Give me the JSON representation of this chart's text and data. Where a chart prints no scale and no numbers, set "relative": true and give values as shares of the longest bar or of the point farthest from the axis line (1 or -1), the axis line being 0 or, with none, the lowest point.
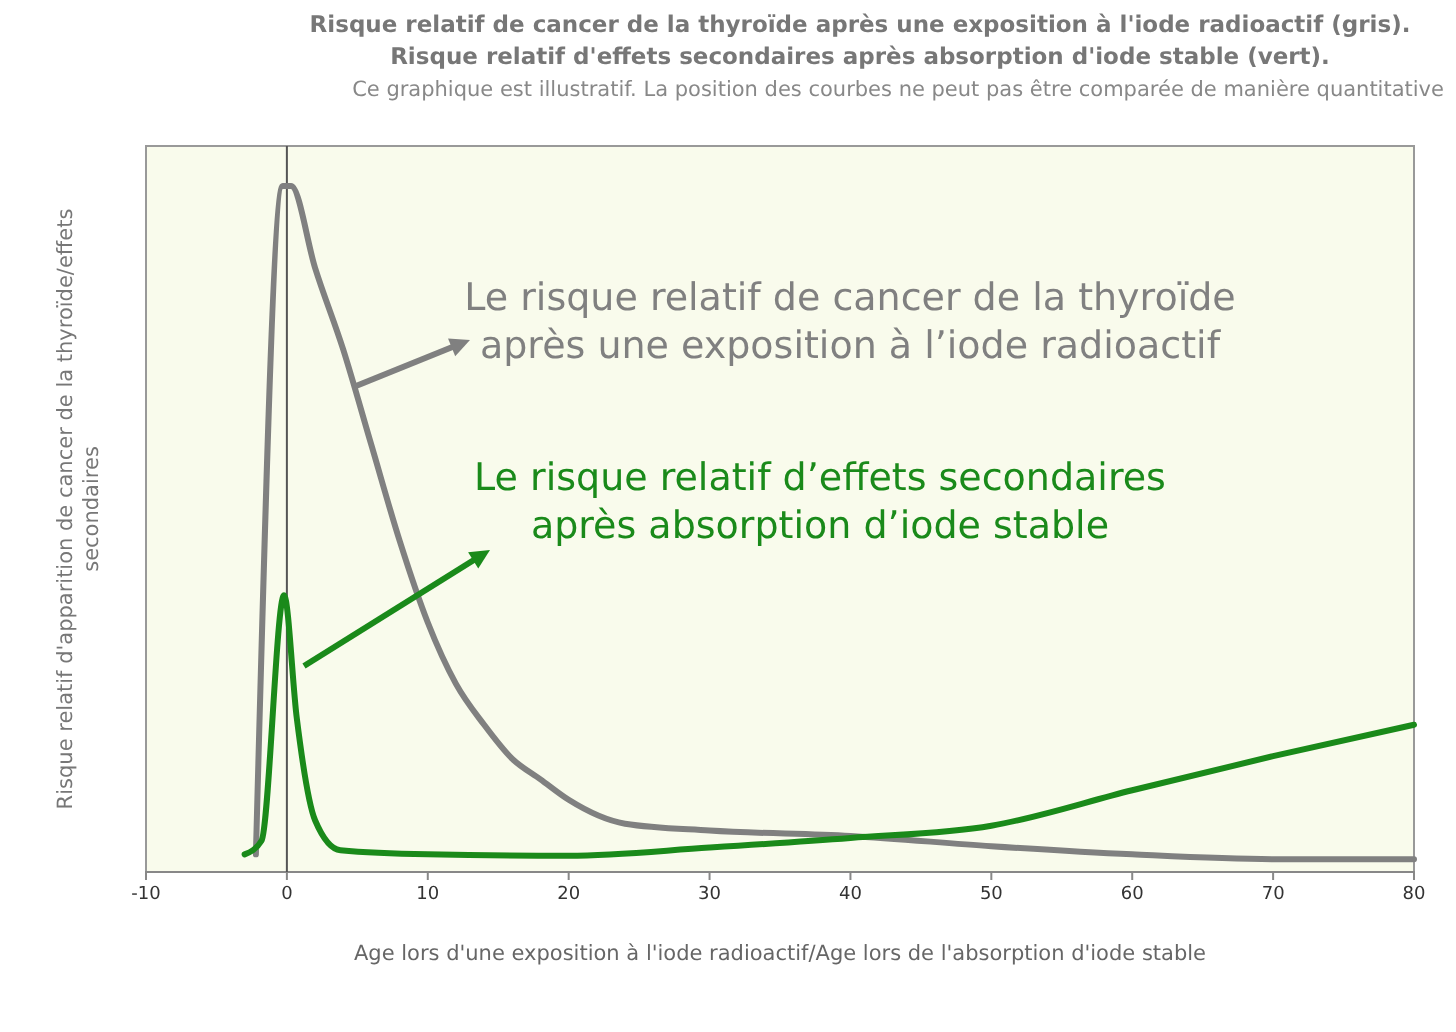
{
  "chart_data": {
    "type": "line",
    "relative": true,
    "title": "Risque relatif de cancer de la thyroïde après une exposition à l'iode radioactif (gris).\nRisque relatif d'effets secondaires après absorption d'iode stable (vert).",
    "subtitle": "Ce graphique est illustratif. La position des courbes ne peut pas être comparée de manière quantitative",
    "xlabel": "Age lors d'une exposition à l'iode radioactif/Age lors de l'absorption d'iode stable",
    "ylabel": "Risque relatif d'apparition de cancer de la thyroïde/effets\nsecondaires",
    "xlim": [
      -10,
      80
    ],
    "xticks": [
      -10,
      0,
      10,
      20,
      30,
      40,
      50,
      60,
      70,
      80
    ],
    "grid": false,
    "marker": "none",
    "line_style": "solid",
    "ref_lines": [
      {
        "axis": "x",
        "value": 0,
        "label": null,
        "color": "#555555"
      }
    ],
    "annotations": [
      "Le risque relatif de cancer de la thyroïde\naprès une exposition à l’iode radioactif",
      "Le risque relatif d’effets secondaires\naprès absorption d’iode stable"
    ],
    "series": [
      {
        "color": "#808080",
        "x": [
          -2.2,
          -0.3,
          0.3,
          2,
          4,
          6,
          8,
          10,
          12,
          14,
          16,
          18,
          20,
          24,
          30,
          40,
          50,
          60,
          70,
          80
        ],
        "values": [
          0.02,
          1,
          1,
          0.88,
          0.76,
          0.62,
          0.48,
          0.36,
          0.27,
          0.21,
          0.16,
          0.13,
          0.1,
          0.065,
          0.055,
          0.047,
          0.032,
          0.02,
          0.013,
          0.013
        ]
      },
      {
        "color": "#1a8a1a",
        "x": [
          -3,
          -1.8,
          -0.2,
          0.7,
          2,
          3.8,
          10,
          20,
          30,
          40,
          50,
          60,
          70,
          80
        ],
        "values": [
          0.02,
          0.04,
          0.4,
          0.22,
          0.07,
          0.026,
          0.02,
          0.018,
          0.03,
          0.044,
          0.062,
          0.114,
          0.164,
          0.21
        ]
      }
    ]
  }
}
